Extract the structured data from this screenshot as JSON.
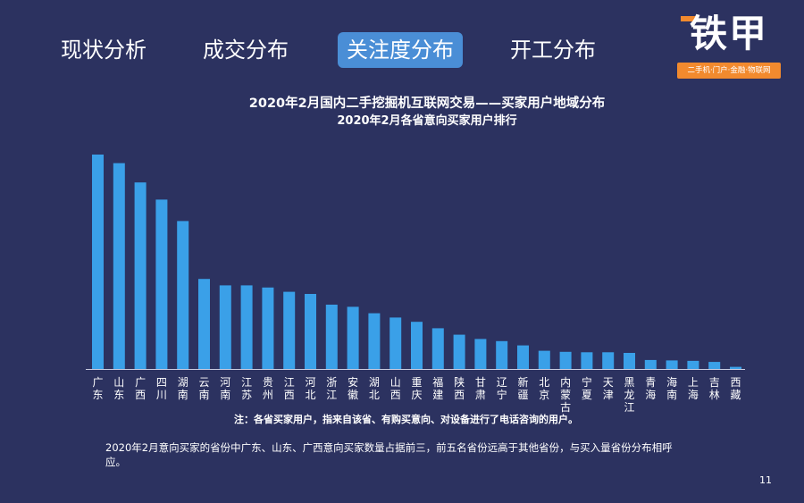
{
  "tabs": [
    {
      "label": "现状分析",
      "active": false
    },
    {
      "label": "成交分布",
      "active": false
    },
    {
      "label": "关注度分布",
      "active": true
    },
    {
      "label": "开工分布",
      "active": false
    }
  ],
  "logo": {
    "main": "铁甲",
    "tagline": "二手机·门户·金融·物联网",
    "accent_color": "#f28a2e"
  },
  "chart_data": {
    "type": "bar",
    "title": "2020年2月国内二手挖掘机互联网交易——买家用户地域分布",
    "subtitle": "2020年2月各省意向买家用户排行",
    "categories": [
      "广东",
      "山东",
      "广西",
      "四川",
      "湖南",
      "云南",
      "河南",
      "江苏",
      "贵州",
      "江西",
      "河北",
      "浙江",
      "安徽",
      "湖北",
      "山西",
      "重庆",
      "福建",
      "陕西",
      "甘肃",
      "辽宁",
      "新疆",
      "北京",
      "内蒙古",
      "宁夏",
      "天津",
      "黑龙江",
      "青海",
      "海南",
      "上海",
      "吉林",
      "西藏"
    ],
    "values": [
      100,
      96,
      87,
      79,
      69,
      42,
      39,
      39,
      38,
      36,
      35,
      30,
      29,
      26,
      24,
      22,
      19,
      16,
      14,
      13,
      11,
      8.5,
      8,
      7.8,
      7.8,
      7.5,
      4.2,
      4,
      3.8,
      3.3,
      1
    ],
    "ylim": [
      0,
      100
    ],
    "bar_color": "#3aa0e8",
    "grid": false
  },
  "note": "注：各省买家用户，指来自该省、有购买意向、对设备进行了电话咨询的用户。",
  "summary": "2020年2月意向买家的省份中广东、山东、广西意向买家数量占据前三，前五名省份远高于其他省份，与买入量省份分布相呼应。",
  "page_number": "11"
}
